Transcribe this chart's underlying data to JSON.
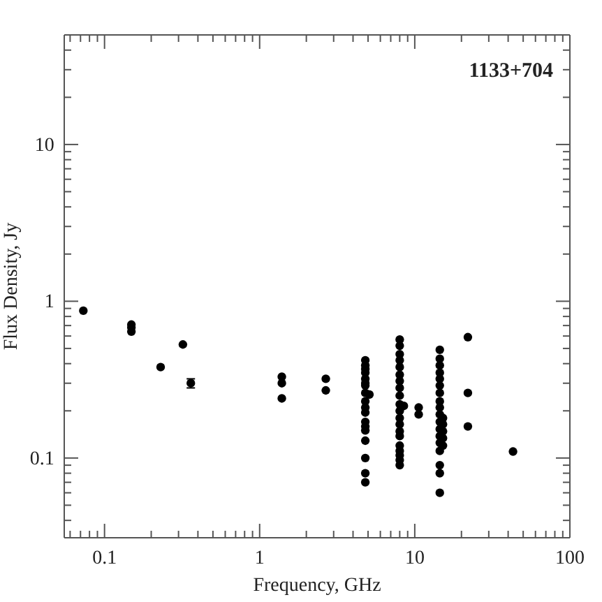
{
  "chart_data": {
    "type": "scatter",
    "title": "1133+704",
    "xlabel": "Frequency, GHz",
    "ylabel": "Flux Density, Jy",
    "log": "xy",
    "grid": false,
    "marker": "circle",
    "xlim": [
      0.055,
      100
    ],
    "ylim": [
      0.031,
      50
    ],
    "xticks": [
      {
        "value": 0.06,
        "label": null
      },
      {
        "value": 0.07,
        "label": null
      },
      {
        "value": 0.08,
        "label": null
      },
      {
        "value": 0.09,
        "label": null
      },
      0.1,
      {
        "value": 0.2,
        "label": null
      },
      {
        "value": 0.3,
        "label": null
      },
      {
        "value": 0.4,
        "label": null
      },
      {
        "value": 0.5,
        "label": null
      },
      {
        "value": 0.6,
        "label": null
      },
      {
        "value": 0.7,
        "label": null
      },
      {
        "value": 0.8,
        "label": null
      },
      {
        "value": 0.9,
        "label": null
      },
      1,
      {
        "value": 2,
        "label": null
      },
      {
        "value": 3,
        "label": null
      },
      {
        "value": 4,
        "label": null
      },
      {
        "value": 5,
        "label": null
      },
      {
        "value": 6,
        "label": null
      },
      {
        "value": 7,
        "label": null
      },
      {
        "value": 8,
        "label": null
      },
      {
        "value": 9,
        "label": null
      },
      10,
      {
        "value": 20,
        "label": null
      },
      {
        "value": 30,
        "label": null
      },
      {
        "value": 40,
        "label": null
      },
      {
        "value": 50,
        "label": null
      },
      {
        "value": 60,
        "label": null
      },
      {
        "value": 70,
        "label": null
      },
      {
        "value": 80,
        "label": null
      },
      {
        "value": 90,
        "label": null
      },
      100
    ],
    "yticks": [
      {
        "value": 0.04,
        "label": null
      },
      {
        "value": 0.05,
        "label": null
      },
      {
        "value": 0.06,
        "label": null
      },
      {
        "value": 0.07,
        "label": null
      },
      {
        "value": 0.08,
        "label": null
      },
      {
        "value": 0.09,
        "label": null
      },
      0.1,
      {
        "value": 0.2,
        "label": null
      },
      {
        "value": 0.3,
        "label": null
      },
      {
        "value": 0.4,
        "label": null
      },
      {
        "value": 0.5,
        "label": null
      },
      {
        "value": 0.6,
        "label": null
      },
      {
        "value": 0.7,
        "label": null
      },
      {
        "value": 0.8,
        "label": null
      },
      {
        "value": 0.9,
        "label": null
      },
      1,
      {
        "value": 2,
        "label": null
      },
      {
        "value": 3,
        "label": null
      },
      {
        "value": 4,
        "label": null
      },
      {
        "value": 5,
        "label": null
      },
      {
        "value": 6,
        "label": null
      },
      {
        "value": 7,
        "label": null
      },
      {
        "value": 8,
        "label": null
      },
      {
        "value": 9,
        "label": null
      },
      10,
      {
        "value": 20,
        "label": null
      },
      {
        "value": 30,
        "label": null
      },
      {
        "value": 40,
        "label": null
      }
    ],
    "series": [
      {
        "color": "#000000",
        "x": [
          0.073,
          0.149,
          0.149,
          0.149,
          0.23,
          0.32,
          0.36,
          1.39,
          1.39,
          1.39,
          2.67,
          2.67,
          4.8,
          4.8,
          4.8,
          4.8,
          4.8,
          4.8,
          4.8,
          4.8,
          4.8,
          4.8,
          4.8,
          4.8,
          4.8,
          4.8,
          4.8,
          4.8,
          4.8,
          4.8,
          5.1,
          8.0,
          8.0,
          8.0,
          8.0,
          8.0,
          8.0,
          8.0,
          8.0,
          8.0,
          8.0,
          8.0,
          8.0,
          8.0,
          8.0,
          8.0,
          8.0,
          8.0,
          8.0,
          8.0,
          8.0,
          8.5,
          10.6,
          10.6,
          14.5,
          14.5,
          14.5,
          14.5,
          14.5,
          14.5,
          14.5,
          14.5,
          14.5,
          14.5,
          14.5,
          14.5,
          14.5,
          14.5,
          14.5,
          14.5,
          14.5,
          14.5,
          15.2,
          15.2,
          15.2,
          15.2,
          15.2,
          22,
          22,
          22,
          43
        ],
        "values": [
          0.87,
          0.71,
          0.68,
          0.64,
          0.38,
          0.53,
          0.3,
          0.33,
          0.3,
          0.24,
          0.32,
          0.27,
          0.42,
          0.39,
          0.35,
          0.32,
          0.29,
          0.26,
          0.23,
          0.21,
          0.195,
          0.17,
          0.159,
          0.15,
          0.129,
          0.1,
          0.08,
          0.07,
          0.37,
          0.3,
          0.254,
          0.57,
          0.52,
          0.46,
          0.42,
          0.38,
          0.34,
          0.31,
          0.28,
          0.25,
          0.22,
          0.2,
          0.18,
          0.164,
          0.148,
          0.138,
          0.12,
          0.111,
          0.104,
          0.097,
          0.09,
          0.215,
          0.21,
          0.19,
          0.49,
          0.43,
          0.39,
          0.35,
          0.32,
          0.29,
          0.26,
          0.23,
          0.21,
          0.19,
          0.17,
          0.153,
          0.138,
          0.125,
          0.111,
          0.09,
          0.08,
          0.06,
          0.18,
          0.164,
          0.148,
          0.134,
          0.12,
          0.59,
          0.26,
          0.159,
          0.11
        ],
        "errors": [
          null,
          null,
          null,
          null,
          null,
          null,
          0.02,
          null,
          null,
          null,
          null,
          null,
          null,
          null,
          null,
          null,
          null,
          null,
          null,
          null,
          null,
          null,
          null,
          null,
          null,
          null,
          null,
          null,
          null,
          null,
          null,
          null,
          null,
          null,
          null,
          null,
          null,
          null,
          null,
          null,
          null,
          null,
          null,
          null,
          null,
          null,
          null,
          null,
          null,
          null,
          null,
          null,
          null,
          null,
          null,
          null,
          null,
          null,
          null,
          null,
          null,
          null,
          null,
          null,
          null,
          null,
          null,
          null,
          null,
          null,
          null,
          null,
          null,
          null,
          null,
          null,
          null,
          null,
          null,
          null,
          null
        ]
      }
    ]
  }
}
